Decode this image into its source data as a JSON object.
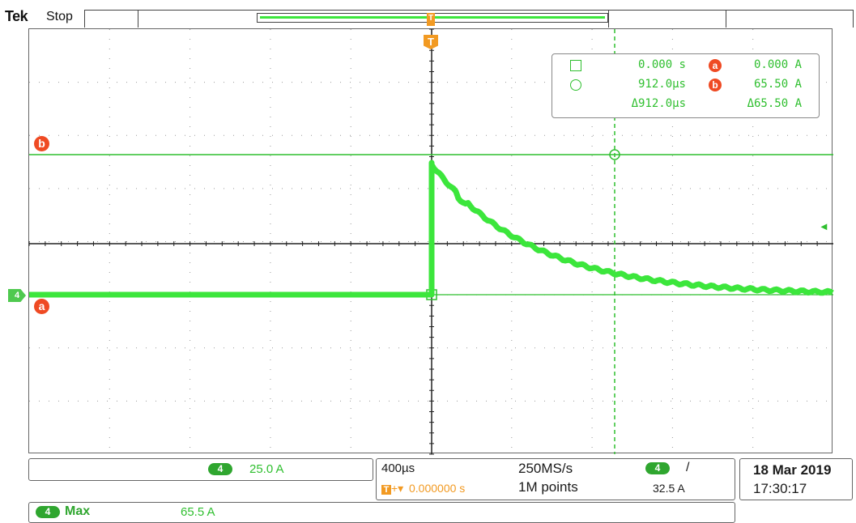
{
  "header": {
    "brand": "Tek",
    "run_state": "Stop"
  },
  "markers": {
    "channel": "4",
    "trigger_pos": "T",
    "cursor_a": "a",
    "cursor_b": "b",
    "trigger_level_arrow": "◂"
  },
  "readout": {
    "row1": {
      "time": "0.000 s",
      "badge": "a",
      "amp": "0.000 A"
    },
    "row2": {
      "time": "912.0µs",
      "badge": "b",
      "amp": "65.50 A"
    },
    "delta": {
      "time": "Δ912.0µs",
      "amp": "Δ65.50 A"
    }
  },
  "scale": {
    "channel": "4",
    "vertical": "25.0 A"
  },
  "timebase": {
    "horizontal": "400µs",
    "position": "0.000000 s",
    "sample_rate": "250MS/s",
    "record_length": "1M points",
    "trigger_channel": "4",
    "trigger_slope": "/",
    "trigger_level": "32.5 A"
  },
  "datetime": {
    "date": "18 Mar 2019",
    "time": "17:30:17"
  },
  "measurement": {
    "channel": "4",
    "name": "Max",
    "value": "65.5 A"
  },
  "colors": {
    "trace": "#3ce63c",
    "cursor": "#2fbf2f",
    "badge": "#ef4a23",
    "trigger": "#f29a22"
  }
}
